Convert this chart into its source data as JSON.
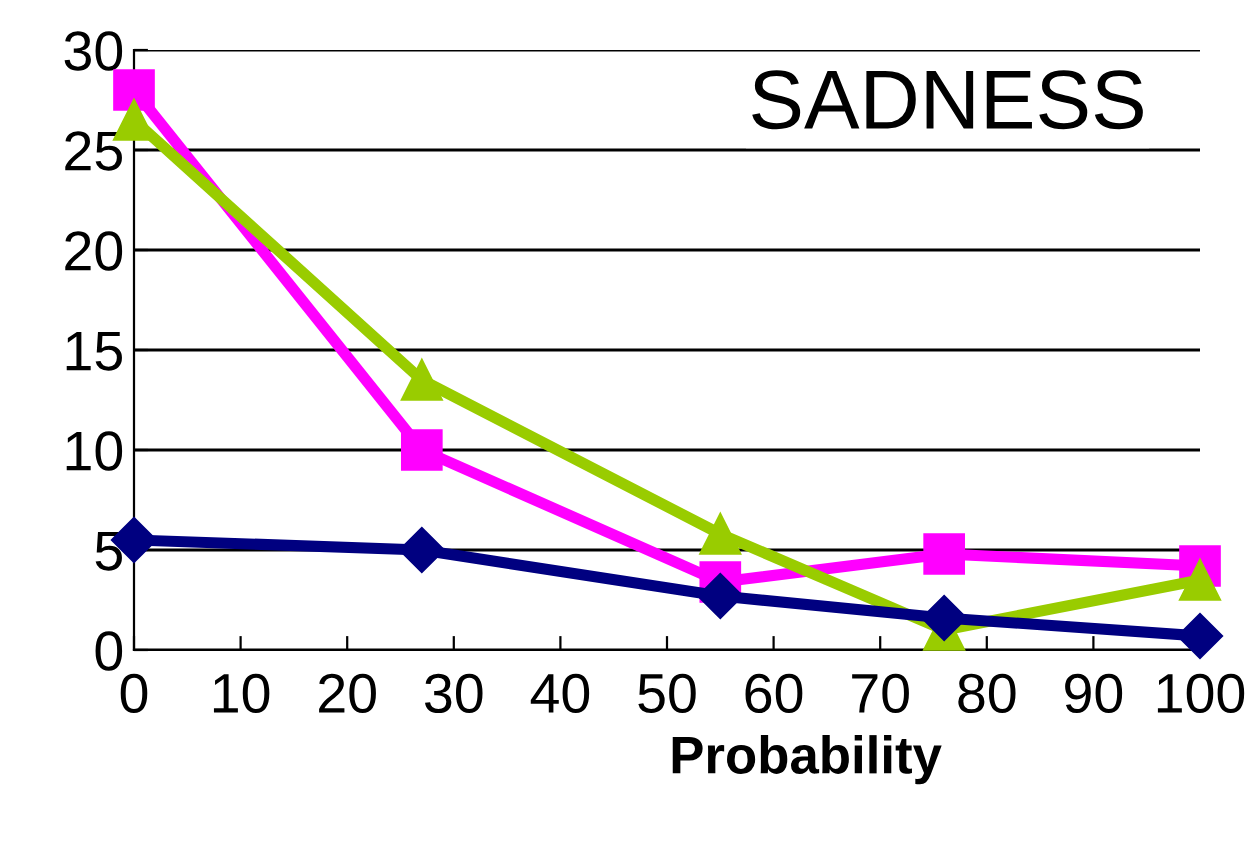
{
  "chart_data": {
    "type": "line",
    "title": "SADNESS",
    "xlabel": "Probability",
    "x": [
      0,
      27,
      55,
      76,
      100
    ],
    "series": [
      {
        "color": "#000080",
        "marker": "diamond",
        "values": [
          5.5,
          5.0,
          2.7,
          1.6,
          0.7
        ]
      },
      {
        "color": "#ff00ff",
        "marker": "square",
        "values": [
          28,
          10,
          3.4,
          4.8,
          4.2
        ]
      },
      {
        "color": "#99cc00",
        "marker": "triangle",
        "values": [
          26.5,
          13.5,
          5.8,
          1.0,
          3.5
        ]
      }
    ],
    "xlim": [
      0,
      100
    ],
    "xticks": [
      0,
      10,
      20,
      30,
      40,
      50,
      60,
      70,
      80,
      90,
      100
    ],
    "ylim": [
      0,
      30
    ],
    "yticks": [
      0,
      5,
      10,
      15,
      20,
      25,
      30
    ],
    "grid": "y",
    "line_style": "solid"
  }
}
